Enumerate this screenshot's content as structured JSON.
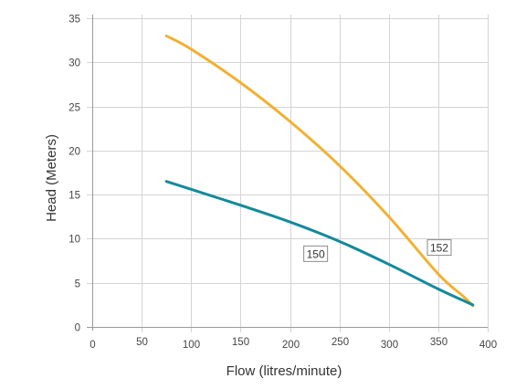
{
  "chart_data": {
    "type": "line",
    "title": "",
    "xlabel": "Flow (litres/minute)",
    "ylabel": "Head (Meters)",
    "xlim": [
      0,
      400
    ],
    "ylim": [
      0,
      35
    ],
    "xticks": [
      0,
      50,
      100,
      150,
      200,
      250,
      300,
      350,
      400
    ],
    "yticks": [
      0,
      5,
      10,
      15,
      20,
      25,
      30,
      35
    ],
    "grid": true,
    "legend": "none",
    "series": [
      {
        "name": "152",
        "color": "#F0B133",
        "x": [
          75,
          100,
          150,
          200,
          250,
          300,
          350,
          375,
          385
        ],
        "y": [
          33,
          31.5,
          27.7,
          23.3,
          18.3,
          12.5,
          6.0,
          3.5,
          2.4
        ]
      },
      {
        "name": "150",
        "color": "#138A9A",
        "x": [
          75,
          100,
          150,
          200,
          250,
          300,
          350,
          385
        ],
        "y": [
          16.5,
          15.6,
          13.8,
          11.9,
          9.7,
          7.1,
          4.3,
          2.5
        ]
      }
    ]
  }
}
